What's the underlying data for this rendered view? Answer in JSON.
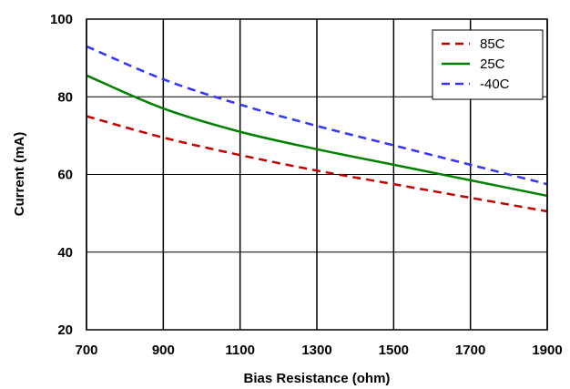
{
  "chart_data": {
    "type": "line",
    "title": "",
    "xlabel": "Bias Resistance (ohm)",
    "ylabel": "Current (mA)",
    "xlim": [
      700,
      1900
    ],
    "ylim": [
      20,
      100
    ],
    "xticks": [
      "700",
      "900",
      "1100",
      "1300",
      "1500",
      "1700",
      "1900"
    ],
    "yticks": [
      "20",
      "40",
      "60",
      "80",
      "100"
    ],
    "grid": true,
    "legend_position": "top-right",
    "series": [
      {
        "name": "85C",
        "color": "#c00000",
        "dash": "dashed",
        "x": [
          700,
          900,
          1100,
          1300,
          1500,
          1700,
          1900
        ],
        "y": [
          75.0,
          69.5,
          65.0,
          61.0,
          57.5,
          54.0,
          50.5
        ]
      },
      {
        "name": "25C",
        "color": "#008000",
        "dash": "solid",
        "x": [
          700,
          900,
          1100,
          1300,
          1500,
          1700,
          1900
        ],
        "y": [
          85.5,
          77.0,
          71.0,
          66.5,
          62.5,
          58.5,
          54.5
        ]
      },
      {
        "name": "-40C",
        "color": "#3333ff",
        "dash": "dashed",
        "x": [
          700,
          900,
          1100,
          1300,
          1500,
          1700,
          1900
        ],
        "y": [
          93.0,
          84.5,
          78.0,
          72.5,
          67.5,
          62.5,
          57.5
        ]
      }
    ]
  }
}
